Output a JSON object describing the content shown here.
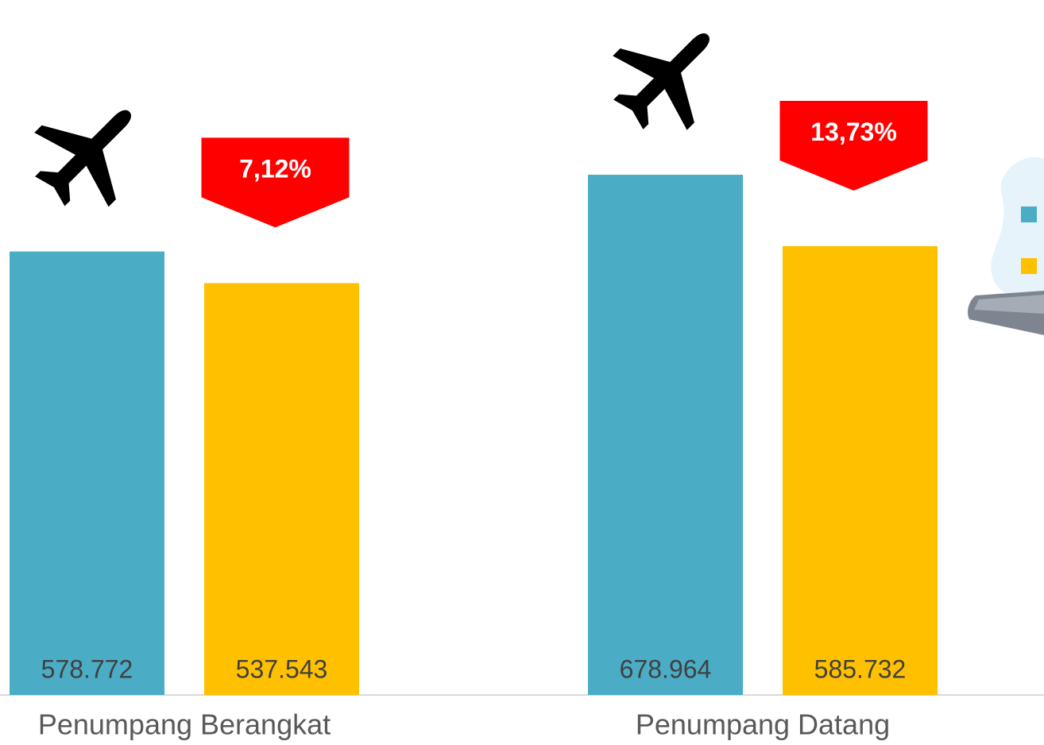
{
  "chart_data": {
    "type": "bar",
    "categories": [
      "Penumpang Berangkat",
      "Penumpang Datang"
    ],
    "series": [
      {
        "color": "#4bacc6",
        "values": [
          578772,
          678964
        ],
        "value_labels": [
          "578.772",
          "678.964"
        ]
      },
      {
        "color": "#ffc000",
        "values": [
          537543,
          585732
        ],
        "value_labels": [
          "537.543",
          "585.732"
        ]
      }
    ],
    "annotations": [
      "7,12%",
      "13,73%"
    ],
    "annotation_color": "#ff0000"
  }
}
